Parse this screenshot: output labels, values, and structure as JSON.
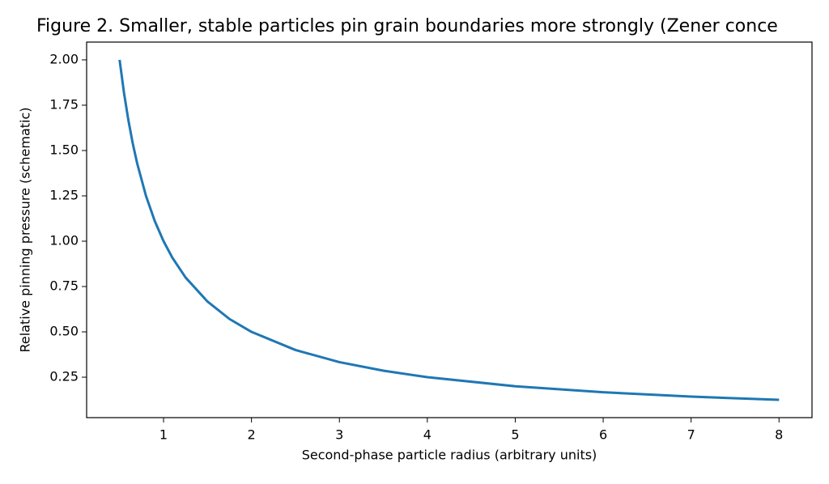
{
  "chart_data": {
    "type": "line",
    "title": "Figure 2. Smaller, stable particles pin grain boundaries more strongly (Zener conce",
    "x_label": "Second-phase particle radius (arbitrary units)",
    "y_label": "Relative pinning pressure (schematic)",
    "x": [
      0.5,
      0.55,
      0.6,
      0.65,
      0.7,
      0.8,
      0.9,
      1,
      1.1,
      1.25,
      1.5,
      1.75,
      2,
      2.5,
      3,
      3.5,
      4,
      5,
      6,
      7,
      8
    ],
    "series": [
      {
        "color": "#1f77b4",
        "values": [
          2,
          1.818,
          1.667,
          1.538,
          1.429,
          1.25,
          1.111,
          1,
          0.909,
          0.8,
          0.667,
          0.571,
          0.5,
          0.4,
          0.333,
          0.286,
          0.25,
          0.2,
          0.167,
          0.143,
          0.125
        ]
      }
    ],
    "xlim": [
      0.125,
      8.375
    ],
    "ylim": [
      0.027,
      2.098
    ],
    "xticks": [
      1,
      2,
      3,
      4,
      5,
      6,
      7,
      8
    ],
    "yticks": [
      {
        "value": 0.25,
        "label": "0.25"
      },
      {
        "value": 0.5,
        "label": "0.50"
      },
      {
        "value": 0.75,
        "label": "0.75"
      },
      {
        "value": 1,
        "label": "1.00"
      },
      {
        "value": 1.25,
        "label": "1.25"
      },
      {
        "value": 1.5,
        "label": "1.50"
      },
      {
        "value": 1.75,
        "label": "1.75"
      },
      {
        "value": 2,
        "label": "2.00"
      }
    ]
  }
}
